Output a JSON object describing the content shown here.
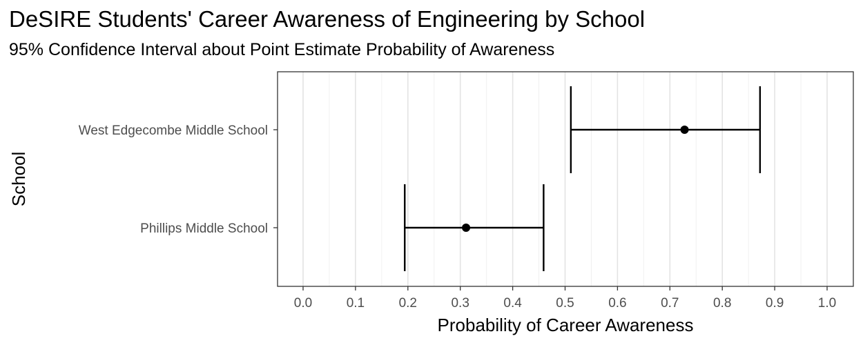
{
  "chart_data": {
    "type": "errorbar",
    "title": "DeSIRE Students' Career Awareness of Engineering by School",
    "subtitle": "95% Confidence Interval about Point Estimate Probability of Awareness",
    "xlabel": "Probability of Career Awareness",
    "ylabel": "School",
    "xlim": [
      0.0,
      1.0
    ],
    "x_ticks": [
      "0.0",
      "0.1",
      "0.2",
      "0.3",
      "0.4",
      "0.5",
      "0.6",
      "0.7",
      "0.8",
      "0.9",
      "1.0"
    ],
    "categories": [
      "West Edgecombe Middle School",
      "Phillips Middle School"
    ],
    "estimates": [
      0.728,
      0.311
    ],
    "lower": [
      0.511,
      0.194
    ],
    "upper": [
      0.872,
      0.459
    ],
    "grid": true,
    "colors": {
      "background": "#ffffff",
      "panel_border": "#333333",
      "grid_major": "#e3e3e3",
      "grid_minor": "#f0f0f0",
      "marks": "#000000",
      "tick_text": "#4d4d4d"
    }
  }
}
